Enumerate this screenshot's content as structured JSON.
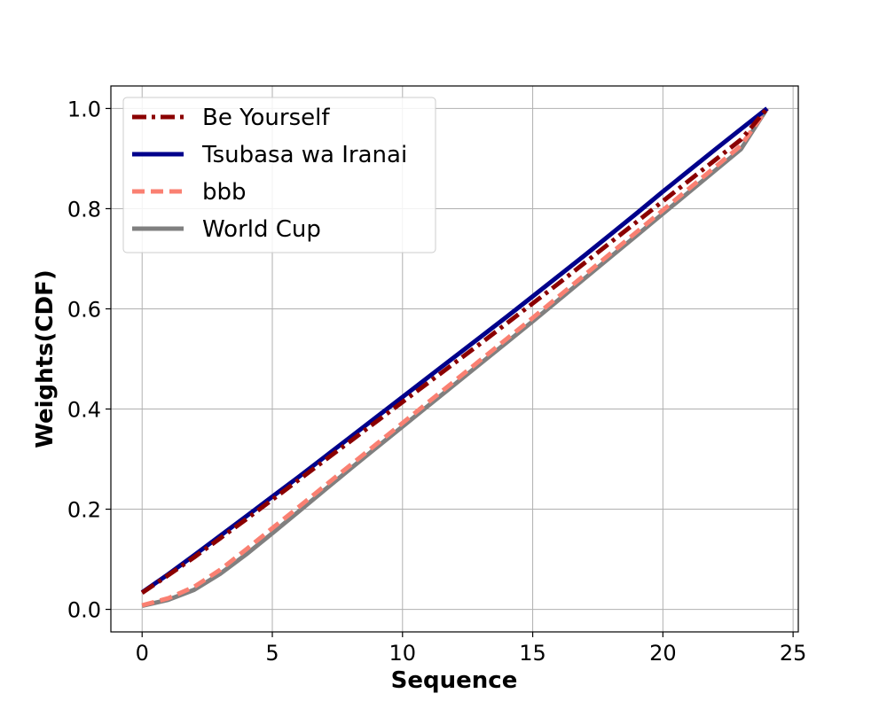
{
  "chart_data": {
    "type": "line",
    "title": "",
    "xlabel": "Sequence",
    "ylabel": "Weights(CDF)",
    "xlim": [
      -1.2,
      25.2
    ],
    "ylim": [
      -0.045,
      1.045
    ],
    "xticks": [
      0,
      5,
      10,
      15,
      20,
      25
    ],
    "yticks": [
      0.0,
      0.2,
      0.4,
      0.6,
      0.8,
      1.0
    ],
    "xtick_labels": [
      "0",
      "5",
      "10",
      "15",
      "20",
      "25"
    ],
    "ytick_labels": [
      "0.0",
      "0.2",
      "0.4",
      "0.6",
      "0.8",
      "1.0"
    ],
    "grid": true,
    "legend_position": "top-left",
    "x": [
      0,
      1,
      2,
      3,
      4,
      5,
      6,
      7,
      8,
      9,
      10,
      11,
      12,
      13,
      14,
      15,
      16,
      17,
      18,
      19,
      20,
      21,
      22,
      23,
      24
    ],
    "series": [
      {
        "name": "Be Yourself",
        "color": "#8b0000",
        "dash": "dashdot",
        "values": [
          0.033,
          0.068,
          0.104,
          0.142,
          0.18,
          0.219,
          0.258,
          0.297,
          0.336,
          0.375,
          0.414,
          0.453,
          0.492,
          0.531,
          0.571,
          0.611,
          0.651,
          0.692,
          0.733,
          0.774,
          0.815,
          0.856,
          0.897,
          0.938,
          1.0
        ]
      },
      {
        "name": "Tsubasa wa Iranai",
        "color": "#00008b",
        "dash": "solid",
        "values": [
          0.034,
          0.07,
          0.108,
          0.147,
          0.186,
          0.225,
          0.264,
          0.304,
          0.344,
          0.384,
          0.424,
          0.464,
          0.504,
          0.544,
          0.584,
          0.625,
          0.666,
          0.707,
          0.749,
          0.791,
          0.834,
          0.876,
          0.918,
          0.959,
          1.0
        ]
      },
      {
        "name": "bbb",
        "color": "#fa8072",
        "dash": "dashed",
        "values": [
          0.008,
          0.022,
          0.045,
          0.079,
          0.12,
          0.162,
          0.204,
          0.246,
          0.288,
          0.33,
          0.372,
          0.414,
          0.456,
          0.498,
          0.54,
          0.582,
          0.625,
          0.668,
          0.711,
          0.754,
          0.797,
          0.84,
          0.883,
          0.926,
          1.0
        ]
      },
      {
        "name": "World Cup",
        "color": "#808080",
        "dash": "solid",
        "values": [
          0.007,
          0.019,
          0.039,
          0.071,
          0.11,
          0.152,
          0.195,
          0.238,
          0.281,
          0.323,
          0.365,
          0.407,
          0.449,
          0.491,
          0.533,
          0.575,
          0.618,
          0.661,
          0.704,
          0.747,
          0.79,
          0.833,
          0.876,
          0.919,
          1.0
        ]
      }
    ]
  }
}
